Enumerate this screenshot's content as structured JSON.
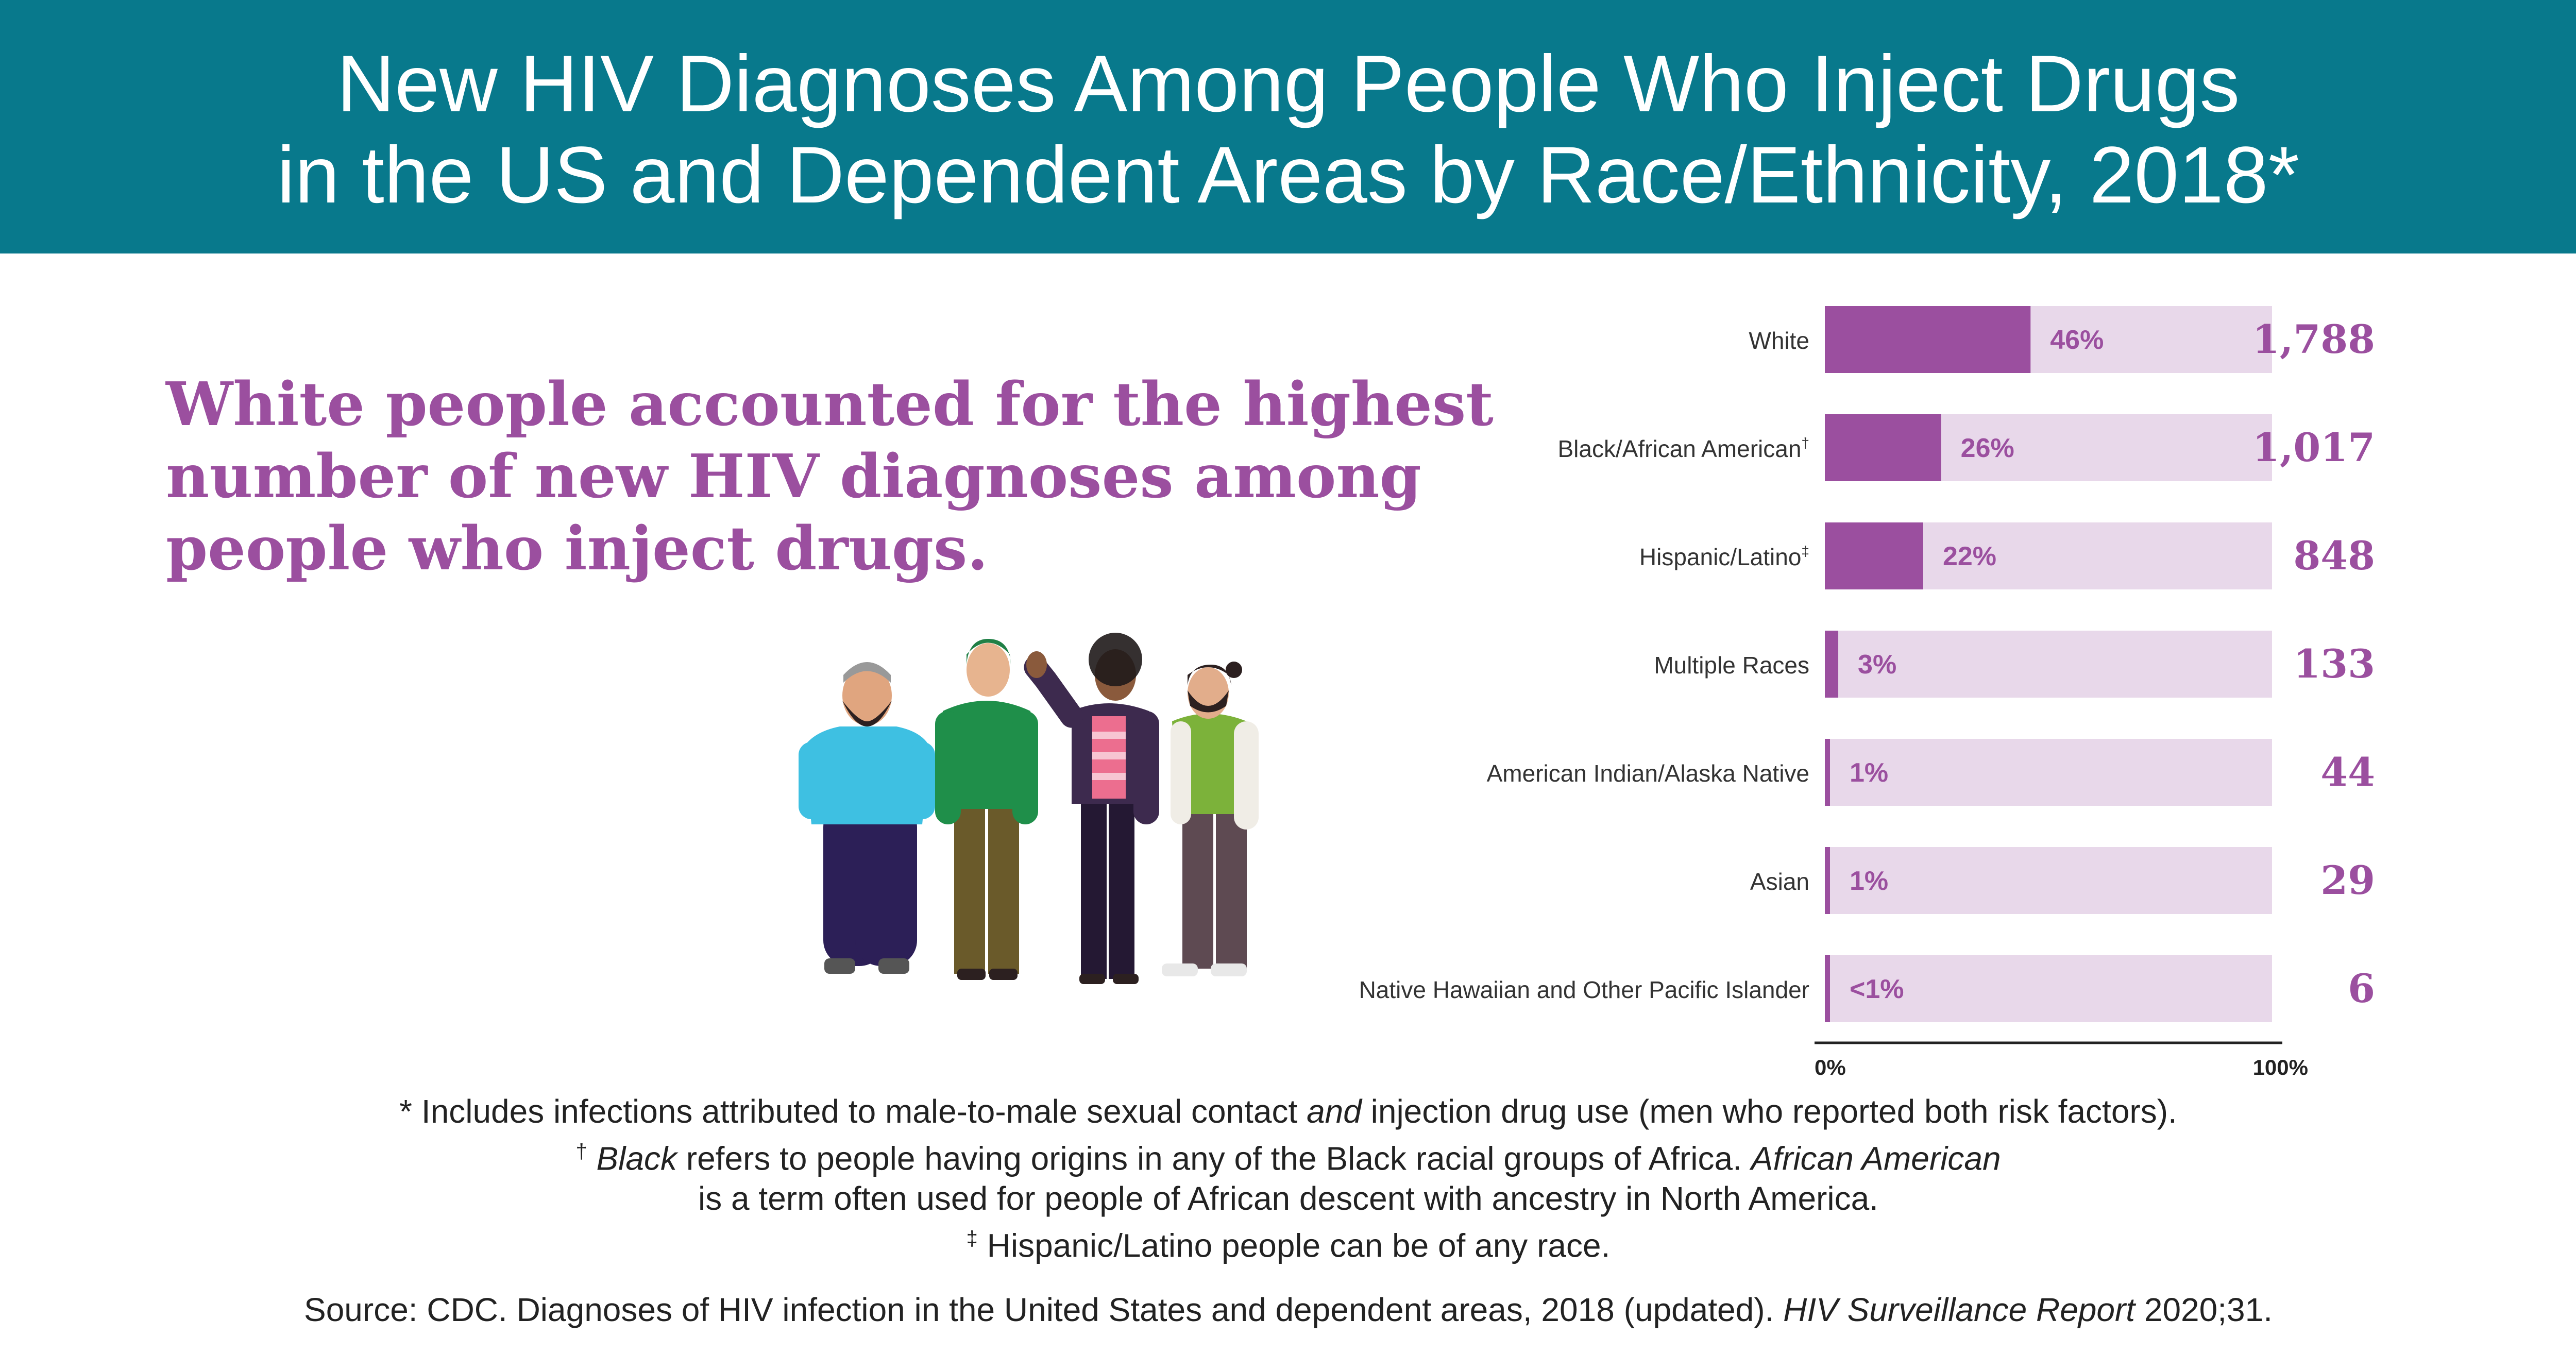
{
  "title": {
    "line1": "New HIV Diagnoses Among People Who Inject Drugs",
    "line2": "in the US and Dependent Areas by Race/Ethnicity, 2018*"
  },
  "headline": {
    "line1": "White people accounted for the highest",
    "line2": "number of new HIV diagnoses among",
    "line3": "people who inject drugs."
  },
  "colors": {
    "header_bg": "#08798c",
    "bar_fill": "#9b4f9f",
    "bar_track": "#e8d8ea",
    "label_purple": "#9b4f9f"
  },
  "chart_data": {
    "type": "bar",
    "orientation": "horizontal",
    "categories": [
      {
        "label": "White",
        "mark": ""
      },
      {
        "label": "Black/African American",
        "mark": "†"
      },
      {
        "label": "Hispanic/Latino",
        "mark": "‡"
      },
      {
        "label": "Multiple Races",
        "mark": ""
      },
      {
        "label": "American Indian/Alaska Native",
        "mark": ""
      },
      {
        "label": "Asian",
        "mark": ""
      },
      {
        "label": "Native Hawaiian and Other Pacific Islander",
        "mark": ""
      }
    ],
    "percent_values": [
      46,
      26,
      22,
      3,
      1,
      1,
      0.5
    ],
    "percent_labels": [
      "46%",
      "26%",
      "22%",
      "3%",
      "1%",
      "1%",
      "<1%"
    ],
    "counts": [
      "1,788",
      "1,017",
      "848",
      "133",
      "44",
      "29",
      "6"
    ],
    "xlim": [
      0,
      100
    ],
    "x_ticks": [
      "0%",
      "100%"
    ]
  },
  "illustration": {
    "name": "group of four people illustration"
  },
  "footnotes": {
    "star_a": "* Includes infections attributed to male-to-male sexual contact ",
    "star_b": "and",
    "star_c": " injection drug use (men who reported both risk factors).",
    "dagger_mark": "†",
    "dagger_b": "Black",
    "dagger_c": " refers to people having origins in any of the Black racial groups of Africa. ",
    "dagger_d": "African American",
    "dagger_line2": "is a term often used for people of African descent with ancestry in North America.",
    "ddagger_mark": "‡",
    "ddagger_text": " Hispanic/Latino people can be of any race."
  },
  "source": {
    "prefix": "Source: CDC. Diagnoses of HIV infection in the United States and dependent areas, 2018 (updated). ",
    "journal": "HIV Surveillance Report",
    "suffix": " 2020;31."
  }
}
